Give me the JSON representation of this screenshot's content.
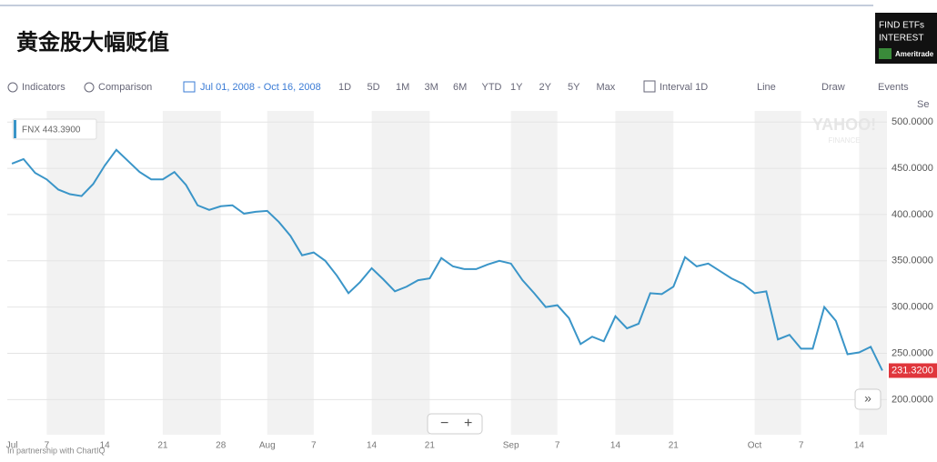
{
  "page_title": "黄金股大幅贬值",
  "ad": {
    "line1": "FIND ETFs",
    "line2": "INTEREST",
    "brand": "Ameritrade"
  },
  "toolbar": {
    "indicators": "Indicators",
    "comparison": "Comparison",
    "range": "Jul 01, 2008 - Oct 16, 2008",
    "periods": [
      "1D",
      "5D",
      "1M",
      "3M",
      "6M",
      "YTD",
      "1Y",
      "2Y",
      "5Y",
      "Max"
    ],
    "interval": "Interval 1D",
    "line": "Line",
    "draw": "Draw",
    "events": "Events",
    "settings": "Se"
  },
  "footer": "In partnership with ChartIQ",
  "watermark": [
    "YAHOO!",
    "FINANCE"
  ],
  "zoom": [
    "−",
    "+"
  ],
  "scroll": "»",
  "chart_data": {
    "type": "line",
    "categories": [
      "Jul",
      null,
      null,
      "7",
      null,
      null,
      null,
      null,
      "14",
      null,
      null,
      null,
      null,
      "21",
      null,
      null,
      null,
      null,
      "28",
      null,
      null,
      null,
      "Aug",
      null,
      null,
      null,
      "7",
      null,
      null,
      null,
      null,
      "14",
      null,
      null,
      null,
      null,
      "21",
      null,
      null,
      null,
      null,
      null,
      null,
      "Sep",
      null,
      null,
      null,
      "7",
      null,
      null,
      null,
      null,
      "14",
      null,
      null,
      null,
      null,
      "21",
      null,
      null,
      null,
      null,
      null,
      null,
      "Oct",
      null,
      null,
      null,
      "7",
      null,
      null,
      null,
      null,
      "14",
      null,
      null
    ],
    "series": [
      {
        "name": "FNX 443.3900",
        "color": "#3a95c8",
        "values": [
          455,
          460,
          445,
          438,
          427,
          422,
          420,
          433,
          453,
          470,
          458,
          446,
          438,
          438,
          446,
          432,
          410,
          405,
          409,
          410,
          401,
          403,
          404,
          392,
          377,
          356,
          359,
          350,
          334,
          315,
          327,
          342,
          330,
          317,
          322,
          329,
          331,
          353,
          344,
          341,
          341,
          346,
          350,
          347,
          329,
          315,
          300,
          302,
          288,
          260,
          268,
          263,
          290,
          277,
          282,
          315,
          314,
          322,
          354,
          344,
          347,
          339,
          331,
          325,
          315,
          317,
          265,
          270,
          255,
          255,
          300,
          285,
          249,
          251,
          257,
          231.32
        ]
      }
    ],
    "last_label": "231.3200",
    "ylim": [
      162,
      512
    ],
    "yticks": [
      {
        "value": 200,
        "label": "200.0000"
      },
      {
        "value": 250,
        "label": "250.0000"
      },
      {
        "value": 300,
        "label": "300.0000"
      },
      {
        "value": 350,
        "label": "350.0000"
      },
      {
        "value": 400,
        "label": "400.0000"
      },
      {
        "value": 450,
        "label": "450.0000"
      },
      {
        "value": 500,
        "label": "500.0000"
      }
    ],
    "grid": true
  }
}
